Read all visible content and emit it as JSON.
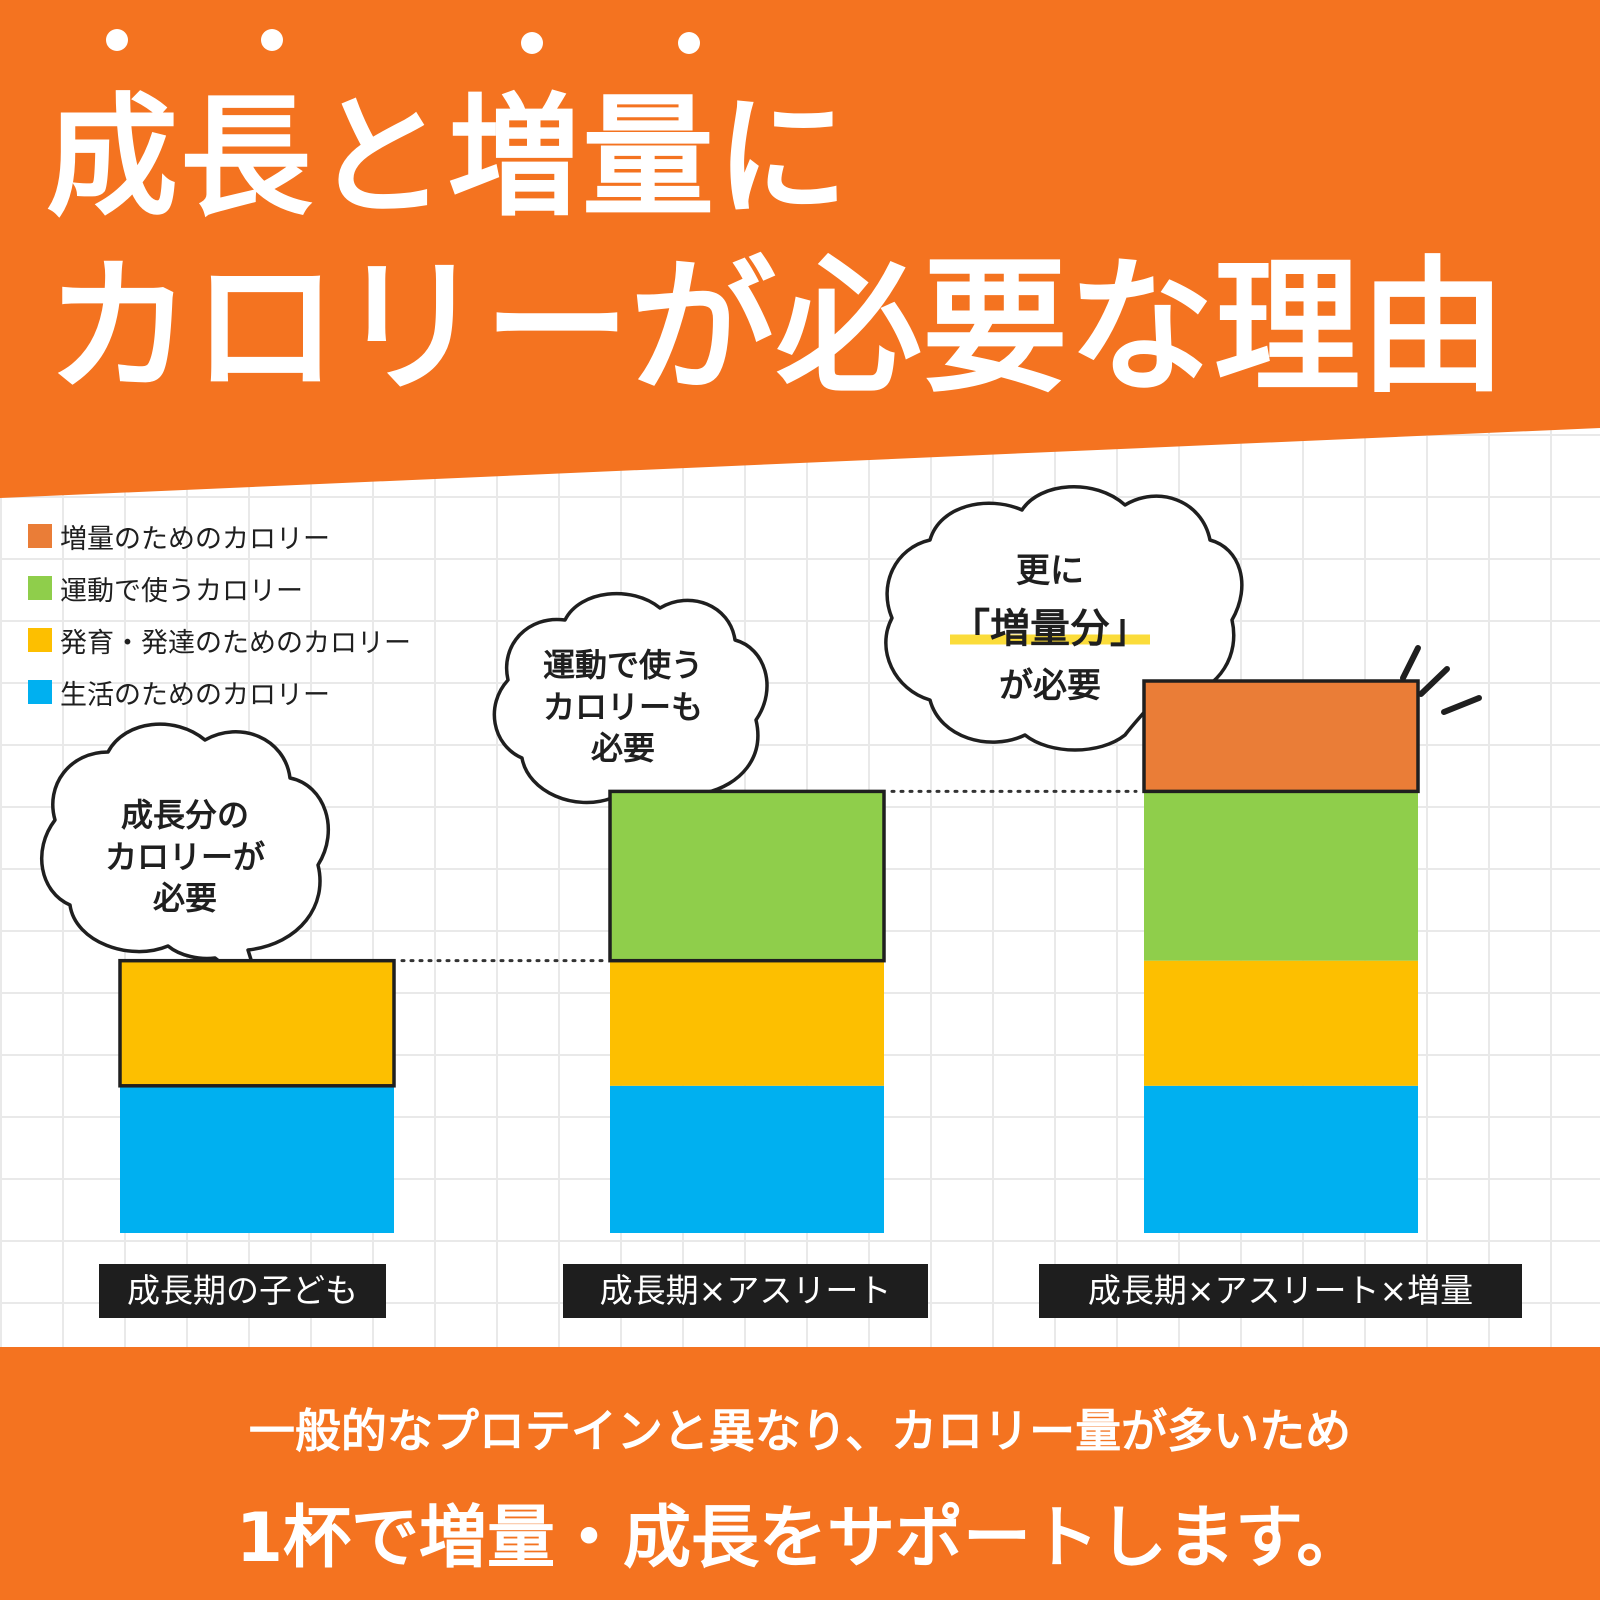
{
  "header": {
    "title_line1": "成長と増量に",
    "title_line2": "カロリーが必要な理由"
  },
  "legend": [
    {
      "label": "増量のためのカロリー",
      "color": "#ea7d37"
    },
    {
      "label": "運動で使うカロリー",
      "color": "#8fce4b"
    },
    {
      "label": "発育・発達のためのカロリー",
      "color": "#fdbf00"
    },
    {
      "label": "生活のためのカロリー",
      "color": "#00b0f0"
    }
  ],
  "bubbles": [
    {
      "lines": [
        "成長分の",
        "カロリーが",
        "必要"
      ]
    },
    {
      "lines": [
        "運動で使う",
        "カロリーも",
        "必要"
      ]
    },
    {
      "lines": [
        "更に",
        "「増量分」",
        "が必要"
      ]
    }
  ],
  "chart_data": {
    "type": "bar",
    "stacked": true,
    "categories": [
      "成長期の子ども",
      "成長期×アスリート",
      "成長期×アスリート×増量"
    ],
    "series": [
      {
        "name": "生活のためのカロリー",
        "color": "#00b0f0",
        "values": [
          1,
          1,
          1
        ]
      },
      {
        "name": "発育・発達のためのカロリー",
        "color": "#fdbf00",
        "values": [
          0.85,
          0.85,
          0.85
        ]
      },
      {
        "name": "運動で使うカロリー",
        "color": "#8fce4b",
        "values": [
          0,
          1.15,
          1.15
        ]
      },
      {
        "name": "増量のためのカロリー",
        "color": "#ea7d37",
        "values": [
          0,
          0,
          0.75
        ]
      }
    ],
    "highlighted_segment": [
      1,
      2,
      3
    ],
    "ylim": [
      0,
      3.75
    ],
    "grid": true,
    "legend_position": "top-left"
  },
  "footer": {
    "line1": "一般的なプロテインと異なり、カロリー量が多いため",
    "line2": "1杯で増量・成長をサポートします。"
  }
}
